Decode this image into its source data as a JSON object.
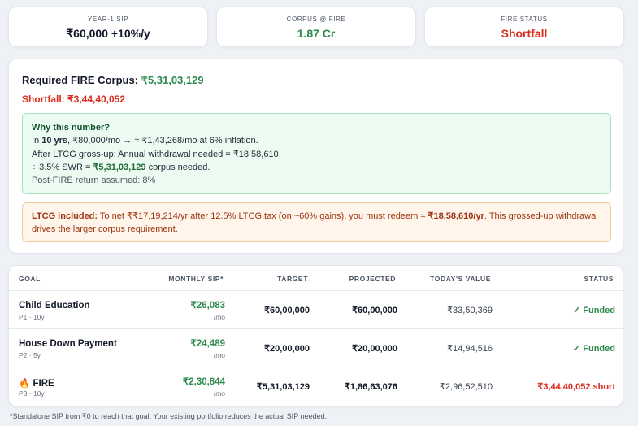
{
  "summary_cards": [
    {
      "label": "YEAR-1 SIP",
      "value": "₹60,000 +10%/y"
    },
    {
      "label": "CORPUS @ FIRE",
      "value": "1.87 Cr"
    },
    {
      "label": "FIRE STATUS",
      "value": "Shortfall"
    }
  ],
  "corpus": {
    "required_label": "Required FIRE Corpus:",
    "required_value": "₹5,31,03,129",
    "shortfall": "Shortfall: ₹3,44,40,052"
  },
  "why": {
    "title": "Why this number?",
    "lines": [
      [
        "In ",
        "10 yrs",
        ", ₹80,000/mo → ≈ ₹1,43,268/mo at 6% inflation."
      ],
      [
        "After LTCG gross-up: Annual withdrawal needed = ₹18,58,610"
      ],
      [
        "÷ 3.5% SWR = ",
        "₹5,31,03,129",
        " corpus needed."
      ]
    ],
    "note": "Post-FIRE return assumed: 8%"
  },
  "ltcg": {
    "label": "LTCG included:",
    "parts": [
      " To net ₹₹17,19,214/yr after 12.5% LTCG tax (on ~60% gains), you must redeem ≈ ",
      "₹18,58,610/yr",
      ". This grossed-up withdrawal drives the larger corpus requirement."
    ]
  },
  "table": {
    "headers": [
      "GOAL",
      "MONTHLY SIP*",
      "TARGET",
      "PROJECTED",
      "TODAY'S VALUE",
      "STATUS"
    ],
    "rows": [
      {
        "goal": "Child Education",
        "meta": "P1 · 10y",
        "sip": "₹26,083",
        "sip_unit": "/mo",
        "target": "₹60,00,000",
        "projected": "₹60,00,000",
        "today": "₹33,50,369",
        "status": "✓ Funded"
      },
      {
        "goal": "House Down Payment",
        "meta": "P2 · 5y",
        "sip": "₹24,489",
        "sip_unit": "/mo",
        "target": "₹20,00,000",
        "projected": "₹20,00,000",
        "today": "₹14,94,516",
        "status": "✓ Funded"
      },
      {
        "goal": "FIRE",
        "meta": "P3 · 10y",
        "sip": "₹2,30,844",
        "sip_unit": "/mo",
        "target": "₹5,31,03,129",
        "projected": "₹1,86,63,076",
        "today": "₹2,96,52,510",
        "status": "₹3,44,40,052 short"
      }
    ]
  },
  "footnote": "*Standalone SIP from ₹0 to reach that goal. Your existing portfolio reduces the actual SIP needed."
}
